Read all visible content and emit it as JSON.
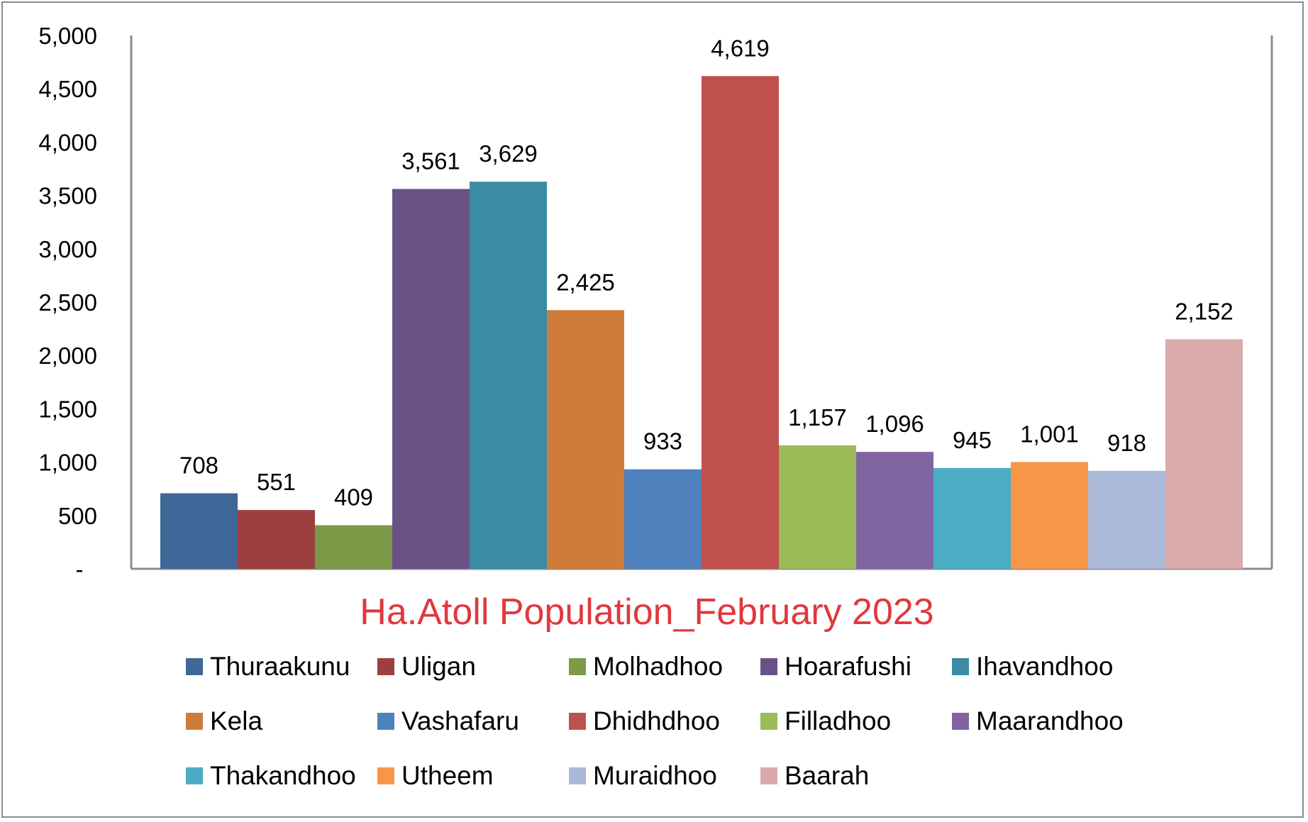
{
  "chart_data": {
    "type": "bar",
    "title": "Ha.Atoll Population_February 2023",
    "title_color": "#e0383e",
    "xlabel": "",
    "ylabel": "",
    "ylim": [
      0,
      5000
    ],
    "y_ticks": [
      0,
      500,
      1000,
      1500,
      2000,
      2500,
      3000,
      3500,
      4000,
      4500,
      5000
    ],
    "y_tick_labels": [
      "-",
      "500",
      "1,000",
      "1,500",
      "2,000",
      "2,500",
      "3,000",
      "3,500",
      "4,000",
      "4,500",
      "5,000"
    ],
    "grid": false,
    "legend_placement": "bottom",
    "series": [
      {
        "name": "Thuraakunu",
        "value": 708,
        "label": "708",
        "color": "#3f6797"
      },
      {
        "name": "Uligan",
        "value": 551,
        "label": "551",
        "color": "#9e3f3f"
      },
      {
        "name": "Molhadhoo",
        "value": 409,
        "label": "409",
        "color": "#7c9a47"
      },
      {
        "name": "Hoarafushi",
        "value": 3561,
        "label": "3,561",
        "color": "#6a5185"
      },
      {
        "name": "Ihavandhoo",
        "value": 3629,
        "label": "3,629",
        "color": "#3a8ba3"
      },
      {
        "name": "Kela",
        "value": 2425,
        "label": "2,425",
        "color": "#cd7c3c"
      },
      {
        "name": "Vashafaru",
        "value": 933,
        "label": "933",
        "color": "#4f81bd"
      },
      {
        "name": "Dhidhdhoo",
        "value": 4619,
        "label": "4,619",
        "color": "#c0504d"
      },
      {
        "name": "Filladhoo",
        "value": 1157,
        "label": "1,157",
        "color": "#9bbb59"
      },
      {
        "name": "Maarandhoo",
        "value": 1096,
        "label": "1,096",
        "color": "#8064a2"
      },
      {
        "name": "Thakandhoo",
        "value": 945,
        "label": "945",
        "color": "#4bacc6"
      },
      {
        "name": "Utheem",
        "value": 1001,
        "label": "1,001",
        "color": "#f79646"
      },
      {
        "name": "Muraidhoo",
        "value": 918,
        "label": "918",
        "color": "#aab9d8"
      },
      {
        "name": "Baarah",
        "value": 2152,
        "label": "2,152",
        "color": "#d9aaaa"
      }
    ]
  }
}
